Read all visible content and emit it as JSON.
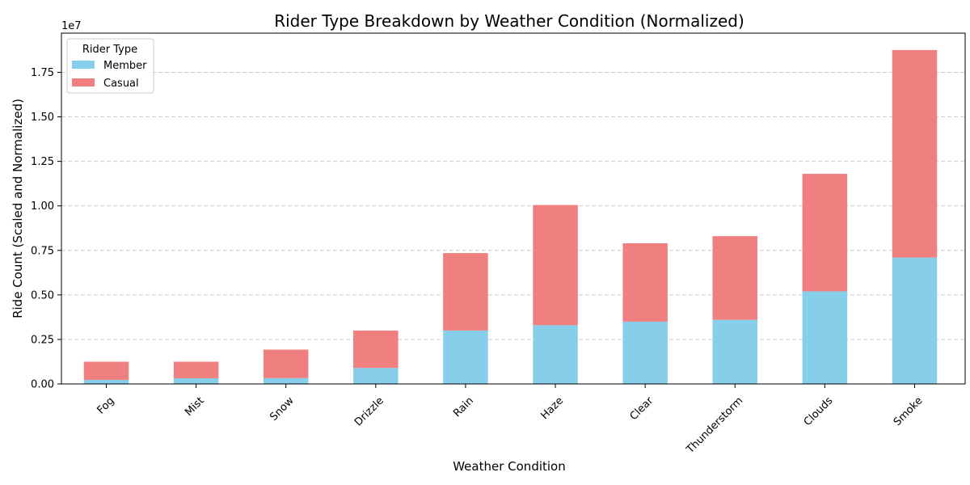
{
  "chart_data": {
    "type": "bar",
    "stacked": true,
    "title": "Rider Type Breakdown by Weather Condition (Normalized)",
    "xlabel": "Weather Condition",
    "ylabel": "Ride Count (Scaled and Normalized)",
    "y_offset_label": "1e7",
    "ylim": [
      0,
      19700000
    ],
    "yticks": [
      0,
      2500000,
      5000000,
      7500000,
      10000000,
      12500000,
      15000000,
      17500000
    ],
    "ytick_labels": [
      "0.00",
      "0.25",
      "0.50",
      "0.75",
      "1.00",
      "1.25",
      "1.50",
      "1.75"
    ],
    "grid": "y-dashed",
    "legend": {
      "title": "Rider Type",
      "placement": "top-left"
    },
    "categories": [
      "Fog",
      "Mist",
      "Snow",
      "Drizzle",
      "Rain",
      "Haze",
      "Clear",
      "Thunderstorm",
      "Clouds",
      "Smoke"
    ],
    "series": [
      {
        "name": "Member",
        "color": "#87CEEB",
        "values": [
          230000,
          320000,
          330000,
          900000,
          3000000,
          3300000,
          3500000,
          3600000,
          5200000,
          7100000
        ]
      },
      {
        "name": "Casual",
        "color": "#F08080",
        "values": [
          1020000,
          930000,
          1600000,
          2100000,
          4350000,
          6750000,
          4400000,
          4700000,
          6600000,
          11650000
        ]
      }
    ]
  }
}
